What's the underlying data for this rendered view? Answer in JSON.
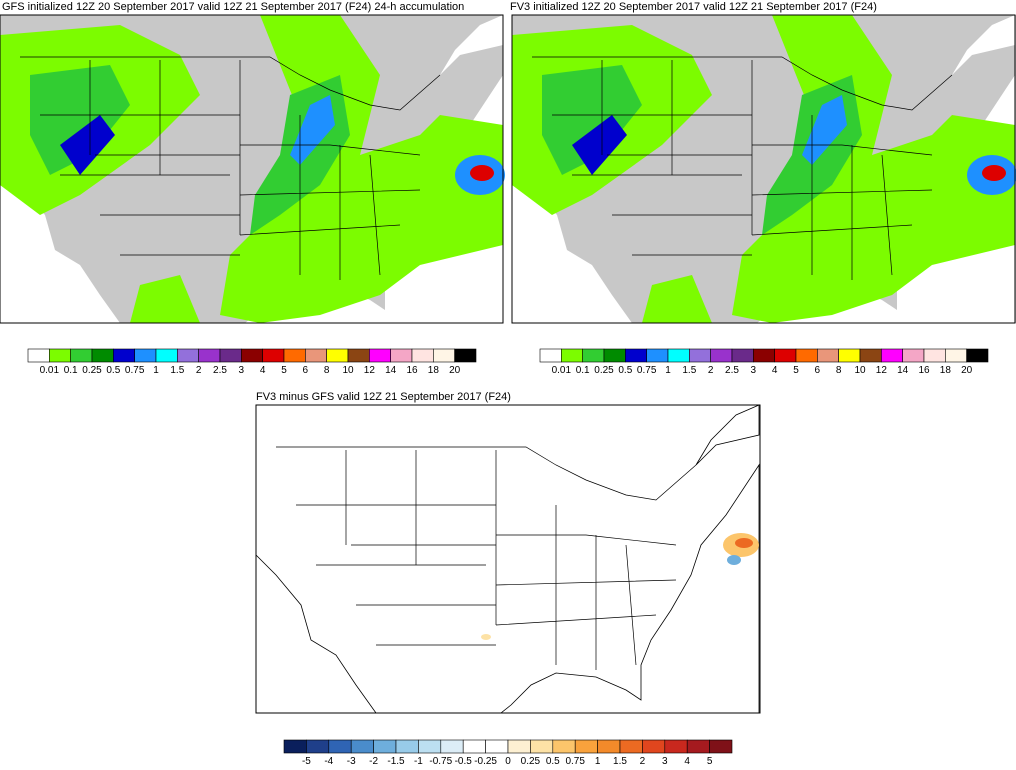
{
  "panels": [
    {
      "title": "GFS initialized 12Z 20 September 2017 valid 12Z 21 September 2017 (F24) 24-h accumulation"
    },
    {
      "title": "FV3 initialized 12Z 20 September 2017 valid 12Z 21 September 2017 (F24)"
    },
    {
      "title": "FV3 minus GFS valid 12Z 21 September 2017 (F24)"
    }
  ],
  "precip_colorbar": {
    "colors": [
      "#ffffff",
      "#7cfc00",
      "#32cd32",
      "#008b00",
      "#0000cd",
      "#1e90ff",
      "#00ffff",
      "#9370db",
      "#9932cc",
      "#6a2a8a",
      "#8b0000",
      "#dd0000",
      "#ff6a00",
      "#e9967a",
      "#ffff00",
      "#8b4513",
      "#ff00ff",
      "#f4a6c6",
      "#ffe4e1",
      "#fff5e6",
      "#000000"
    ],
    "labels": [
      "0.01",
      "0.1",
      "0.25",
      "0.5",
      "0.75",
      "1",
      "1.5",
      "2",
      "2.5",
      "3",
      "4",
      "5",
      "6",
      "8",
      "10",
      "12",
      "14",
      "16",
      "18",
      "20"
    ]
  },
  "diff_colorbar": {
    "colors": [
      "#0a1f5c",
      "#1f3f8a",
      "#2f64b4",
      "#4a8ccb",
      "#6eaedc",
      "#98cbe9",
      "#bcdff1",
      "#dcedf7",
      "#ffffff",
      "#ffffff",
      "#fdf0d2",
      "#fde2a6",
      "#fcc56b",
      "#f9a23c",
      "#f38a2a",
      "#ec6a22",
      "#e0461e",
      "#c9281e",
      "#a51a1f",
      "#7f1118"
    ],
    "labels": [
      "-5",
      "-4",
      "-3",
      "-2",
      "-1.5",
      "-1",
      "-0.75",
      "-0.5",
      "-0.25",
      "0",
      "0.25",
      "0.5",
      "0.75",
      "1",
      "1.5",
      "2",
      "3",
      "4",
      "5"
    ]
  }
}
